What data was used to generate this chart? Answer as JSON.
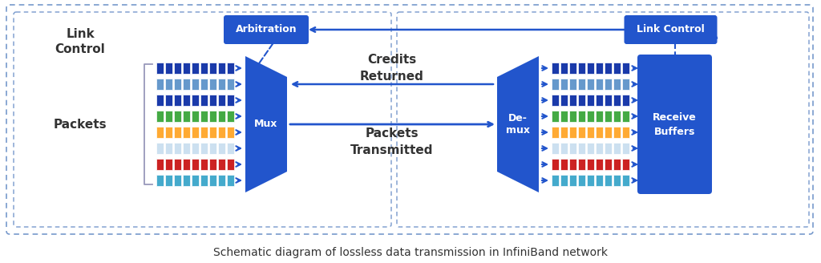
{
  "title": "Schematic diagram of lossless data transmission in InfiniBand network",
  "bg_color": "#ffffff",
  "border_color": "#7799cc",
  "blue": "#2255cc",
  "arrow_color": "#2255cc",
  "text_color": "#333333",
  "packet_colors": [
    "#1a3aaa",
    "#6699cc",
    "#1a3aaa",
    "#44aa44",
    "#ffaa33",
    "#cce0f0",
    "#cc2222",
    "#44aacc"
  ],
  "label_link_control": "Link\nControl",
  "label_packets": "Packets",
  "label_mux": "Mux",
  "label_demux": "De-\nmux",
  "label_arbitration": "Arbitration",
  "label_link_control2": "Link Control",
  "label_receive_buffers": "Receive\nBuffers",
  "label_credits_returned": "Credits\nReturned",
  "label_packets_transmitted": "Packets\nTransmitted",
  "figsize": [
    10.24,
    3.28
  ],
  "dpi": 100
}
